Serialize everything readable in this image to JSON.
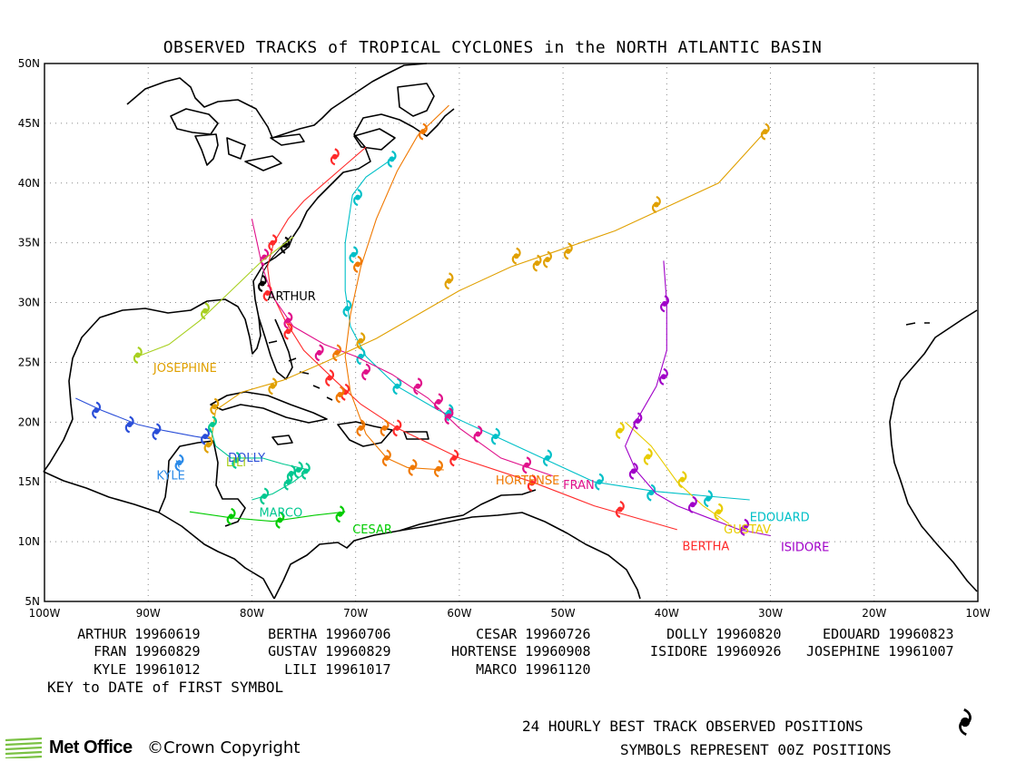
{
  "title": "OBSERVED TRACKS of TROPICAL CYCLONES in the NORTH ATLANTIC BASIN",
  "map": {
    "lon_range": [
      -100,
      -10
    ],
    "lat_range": [
      5,
      50
    ],
    "lat_ticks": [
      {
        "value": 50,
        "label": "50N"
      },
      {
        "value": 45,
        "label": "45N"
      },
      {
        "value": 40,
        "label": "40N"
      },
      {
        "value": 35,
        "label": "35N"
      },
      {
        "value": 30,
        "label": "30N"
      },
      {
        "value": 25,
        "label": "25N"
      },
      {
        "value": 20,
        "label": "20N"
      },
      {
        "value": 15,
        "label": "15N"
      },
      {
        "value": 10,
        "label": "10N"
      },
      {
        "value": 5,
        "label": "5N"
      }
    ],
    "lon_ticks": [
      {
        "value": -100,
        "label": "100W"
      },
      {
        "value": -90,
        "label": "90W"
      },
      {
        "value": -80,
        "label": "80W"
      },
      {
        "value": -70,
        "label": "70W"
      },
      {
        "value": -60,
        "label": "60W"
      },
      {
        "value": -50,
        "label": "50W"
      },
      {
        "value": -40,
        "label": "40W"
      },
      {
        "value": -30,
        "label": "30W"
      },
      {
        "value": -20,
        "label": "20W"
      },
      {
        "value": -10,
        "label": "10W"
      }
    ],
    "grid": "dotted"
  },
  "chart_data": {
    "type": "scatter",
    "title": "OBSERVED TRACKS of TROPICAL CYCLONES in the NORTH ATLANTIC BASIN",
    "xlim": [
      -100,
      -10
    ],
    "ylim": [
      5,
      50
    ],
    "series": [
      {
        "name": "ARTHUR",
        "color": "#000000",
        "label_pos": [
          -78.5,
          30.2
        ],
        "track": [
          [
            -79.2,
            31.6
          ],
          [
            -78.9,
            32.6
          ],
          [
            -78.2,
            33.6
          ],
          [
            -77.3,
            34.5
          ],
          [
            -76.2,
            35.6
          ]
        ],
        "points": [
          [
            -79.0,
            31.6
          ],
          [
            -76.8,
            34.8
          ]
        ]
      },
      {
        "name": "BERTHA",
        "color": "#ff2a2a",
        "label_pos": [
          -38.5,
          9.3
        ],
        "track": [
          [
            -39,
            11
          ],
          [
            -47,
            13
          ],
          [
            -53,
            15
          ],
          [
            -60,
            17
          ],
          [
            -66,
            19.5
          ],
          [
            -69.5,
            21.5
          ],
          [
            -72,
            23.5
          ],
          [
            -75,
            26
          ],
          [
            -76.8,
            28.5
          ],
          [
            -78.2,
            31
          ],
          [
            -78.5,
            33
          ],
          [
            -77.9,
            35
          ],
          [
            -76.5,
            37
          ],
          [
            -75,
            38.5
          ],
          [
            -73,
            40
          ],
          [
            -71,
            41.5
          ],
          [
            -69,
            43
          ]
        ],
        "points": [
          [
            -44.5,
            12.7
          ],
          [
            -53,
            14.9
          ],
          [
            -60.5,
            17
          ],
          [
            -66,
            19.5
          ],
          [
            -71,
            22.5
          ],
          [
            -72.5,
            23.7
          ],
          [
            -76.5,
            27.6
          ],
          [
            -78.5,
            30.8
          ],
          [
            -78,
            35
          ],
          [
            -72,
            42.2
          ]
        ]
      },
      {
        "name": "CESAR",
        "color": "#00cc00",
        "label_pos": [
          -70.3,
          10.7
        ],
        "track": [
          [
            -86,
            12.5
          ],
          [
            -82,
            12
          ],
          [
            -78,
            11.7
          ],
          [
            -74,
            12.2
          ],
          [
            -71,
            12.5
          ]
        ],
        "points": [
          [
            -82,
            12.1
          ],
          [
            -77.3,
            11.8
          ],
          [
            -71.5,
            12.3
          ]
        ]
      },
      {
        "name": "DOLLY",
        "color": "#2a4ed8",
        "label_pos": [
          -82.3,
          16.7
        ],
        "track": [
          [
            -97,
            22
          ],
          [
            -94.5,
            21
          ],
          [
            -91,
            19.8
          ],
          [
            -88.5,
            19.3
          ],
          [
            -85.5,
            18.8
          ],
          [
            -84,
            18.6
          ]
        ],
        "points": [
          [
            -95,
            21
          ],
          [
            -91.8,
            19.8
          ],
          [
            -89.2,
            19.2
          ],
          [
            -84.5,
            18.8
          ]
        ]
      },
      {
        "name": "EDOUARD",
        "color": "#00c0c8",
        "label_pos": [
          -32,
          11.7
        ],
        "track": [
          [
            -32,
            13.5
          ],
          [
            -36,
            13.8
          ],
          [
            -41,
            14.2
          ],
          [
            -47,
            15
          ],
          [
            -52,
            17
          ],
          [
            -57,
            19
          ],
          [
            -62,
            21
          ],
          [
            -66,
            23
          ],
          [
            -69,
            25.5
          ],
          [
            -70.5,
            28
          ],
          [
            -71,
            31
          ],
          [
            -71,
            35
          ],
          [
            -70.3,
            39
          ],
          [
            -69,
            40.5
          ],
          [
            -66.5,
            42
          ]
        ],
        "points": [
          [
            -36,
            13.6
          ],
          [
            -41.5,
            14.1
          ],
          [
            -46.5,
            15
          ],
          [
            -51.5,
            17
          ],
          [
            -56.5,
            18.8
          ],
          [
            -61,
            20.8
          ],
          [
            -66,
            23
          ],
          [
            -69.5,
            25.5
          ],
          [
            -70.8,
            29.5
          ],
          [
            -70.2,
            34
          ],
          [
            -69.8,
            38.8
          ],
          [
            -66.5,
            42
          ]
        ]
      },
      {
        "name": "FRAN",
        "color": "#e0108a",
        "label_pos": [
          -50,
          14.4
        ],
        "track": [
          [
            -51,
            15.5
          ],
          [
            -56,
            17
          ],
          [
            -60,
            19.5
          ],
          [
            -63,
            22
          ],
          [
            -66.5,
            24
          ],
          [
            -70,
            25.5
          ],
          [
            -73,
            26.5
          ],
          [
            -76,
            28
          ],
          [
            -78,
            30.5
          ],
          [
            -79,
            33
          ],
          [
            -79.5,
            35
          ],
          [
            -80,
            37
          ]
        ],
        "points": [
          [
            -53.5,
            16.4
          ],
          [
            -58.2,
            19
          ],
          [
            -61,
            20.5
          ],
          [
            -62,
            21.7
          ],
          [
            -64,
            23
          ],
          [
            -69,
            24.2
          ],
          [
            -73.5,
            25.8
          ],
          [
            -76.5,
            28.5
          ],
          [
            -78.8,
            33.8
          ]
        ]
      },
      {
        "name": "GUSTAV",
        "color": "#e8cc00",
        "label_pos": [
          -34.5,
          10.7
        ],
        "track": [
          [
            -34,
            11.5
          ],
          [
            -36.5,
            13
          ],
          [
            -39,
            15
          ],
          [
            -41.5,
            18
          ],
          [
            -44,
            20
          ]
        ],
        "points": [
          [
            -35,
            12.5
          ],
          [
            -38.5,
            15.2
          ],
          [
            -41.8,
            17.1
          ],
          [
            -44.5,
            19.3
          ]
        ]
      },
      {
        "name": "HORTENSE",
        "color": "#f07800",
        "label_pos": [
          -56.5,
          14.8
        ],
        "track": [
          [
            -61.5,
            16
          ],
          [
            -65,
            16.2
          ],
          [
            -67,
            17
          ],
          [
            -69,
            19
          ],
          [
            -70.5,
            22.5
          ],
          [
            -71,
            25.5
          ],
          [
            -70.5,
            29
          ],
          [
            -69.5,
            33
          ],
          [
            -68,
            37
          ],
          [
            -66,
            41
          ],
          [
            -64,
            44
          ],
          [
            -61,
            46.5
          ]
        ],
        "points": [
          [
            -62,
            16.1
          ],
          [
            -64.5,
            16.2
          ],
          [
            -67,
            17
          ],
          [
            -67.2,
            19.5
          ],
          [
            -69.5,
            19.5
          ],
          [
            -71.5,
            22.3
          ],
          [
            -71.8,
            25.8
          ],
          [
            -69.8,
            33.2
          ],
          [
            -63.5,
            44.3
          ]
        ]
      },
      {
        "name": "ISIDORE",
        "color": "#a000c8",
        "label_pos": [
          -29,
          9.2
        ],
        "track": [
          [
            -30,
            10.5
          ],
          [
            -33,
            11
          ],
          [
            -36,
            12
          ],
          [
            -39,
            13
          ],
          [
            -41,
            14
          ],
          [
            -43,
            16
          ],
          [
            -44,
            18
          ],
          [
            -43,
            20
          ],
          [
            -41,
            23
          ],
          [
            -40,
            26
          ],
          [
            -40,
            30
          ],
          [
            -40.3,
            33.5
          ]
        ],
        "points": [
          [
            -32.5,
            11.2
          ],
          [
            -37.5,
            13.1
          ],
          [
            -43.2,
            15.9
          ],
          [
            -42.8,
            20.1
          ],
          [
            -40.3,
            23.8
          ],
          [
            -40.2,
            29.9
          ]
        ]
      },
      {
        "name": "JOSEPHINE",
        "color": "#e0a000",
        "label_pos": [
          -89.5,
          24.2
        ],
        "track": [
          [
            -84,
            18
          ],
          [
            -83.5,
            21
          ],
          [
            -81,
            22.5
          ],
          [
            -77,
            23.5
          ],
          [
            -73,
            25
          ],
          [
            -68,
            27
          ],
          [
            -60,
            31
          ],
          [
            -55,
            33
          ],
          [
            -50,
            34.5
          ],
          [
            -45,
            36
          ],
          [
            -40,
            38
          ],
          [
            -35,
            40
          ],
          [
            -30.5,
            44.3
          ]
        ],
        "points": [
          [
            -84.2,
            18.1
          ],
          [
            -83.6,
            21.3
          ],
          [
            -78,
            23
          ],
          [
            -69.5,
            26.8
          ],
          [
            -61,
            31.8
          ],
          [
            -54.5,
            33.9
          ],
          [
            -52.5,
            33.3
          ],
          [
            -51.5,
            33.6
          ],
          [
            -49.5,
            34.3
          ],
          [
            -41,
            38.2
          ],
          [
            -30.5,
            44.3
          ]
        ]
      },
      {
        "name": "KYLE",
        "color": "#2a8ae8",
        "label_pos": [
          -89.2,
          15.2
        ],
        "track": [
          [
            -87,
            16.2
          ],
          [
            -87.3,
            16.8
          ]
        ],
        "points": [
          [
            -87,
            16.6
          ]
        ]
      },
      {
        "name": "LILI",
        "color": "#a8d020",
        "label_pos": [
          -82.5,
          16.3
        ],
        "track": [
          [
            -91,
            25.5
          ],
          [
            -88,
            26.5
          ],
          [
            -85,
            28.5
          ],
          [
            -82,
            31
          ],
          [
            -79,
            33.5
          ],
          [
            -76,
            35.5
          ]
        ],
        "points": [
          [
            -91,
            25.6
          ],
          [
            -84.5,
            29.3
          ]
        ]
      },
      {
        "name": "MARCO",
        "color": "#00c890",
        "label_pos": [
          -79.3,
          12.1
        ],
        "track": [
          [
            -80,
            13.5
          ],
          [
            -78,
            14
          ],
          [
            -76,
            15
          ],
          [
            -74.5,
            16
          ],
          [
            -77,
            16.5
          ],
          [
            -79,
            17
          ],
          [
            -82,
            17
          ],
          [
            -83.5,
            18
          ],
          [
            -84,
            19.5
          ]
        ],
        "points": [
          [
            -78.8,
            13.8
          ],
          [
            -76.5,
            15
          ],
          [
            -75.5,
            16
          ],
          [
            -74.8,
            15.9
          ],
          [
            -76.2,
            15.7
          ],
          [
            -81.5,
            16.8
          ],
          [
            -83.8,
            19.8
          ]
        ]
      }
    ]
  },
  "key": {
    "rows": [
      [
        {
          "name": "ARTHUR",
          "date": "19960619"
        },
        {
          "name": "BERTHA",
          "date": "19960706"
        },
        {
          "name": "CESAR",
          "date": "19960726"
        },
        {
          "name": "DOLLY",
          "date": "19960820"
        },
        {
          "name": "EDOUARD",
          "date": "19960823"
        }
      ],
      [
        {
          "name": "FRAN",
          "date": "19960829"
        },
        {
          "name": "GUSTAV",
          "date": "19960829"
        },
        {
          "name": "HORTENSE",
          "date": "19960908"
        },
        {
          "name": "ISIDORE",
          "date": "19960926"
        },
        {
          "name": "JOSEPHINE",
          "date": "19961007"
        }
      ],
      [
        {
          "name": "KYLE",
          "date": "19961012"
        },
        {
          "name": "LILI",
          "date": "19961017"
        },
        {
          "name": "MARCO",
          "date": "19961120"
        }
      ]
    ],
    "note": "KEY to DATE of FIRST SYMBOL"
  },
  "footer": {
    "line1": "24 HOURLY BEST TRACK OBSERVED POSITIONS",
    "line2": "SYMBOLS REPRESENT 00Z POSITIONS",
    "logo_text": "Met Office",
    "copyright": "©Crown Copyright"
  },
  "icons": {
    "hurricane_symbol": "hurricane-icon",
    "logo": "met-office-logo"
  }
}
